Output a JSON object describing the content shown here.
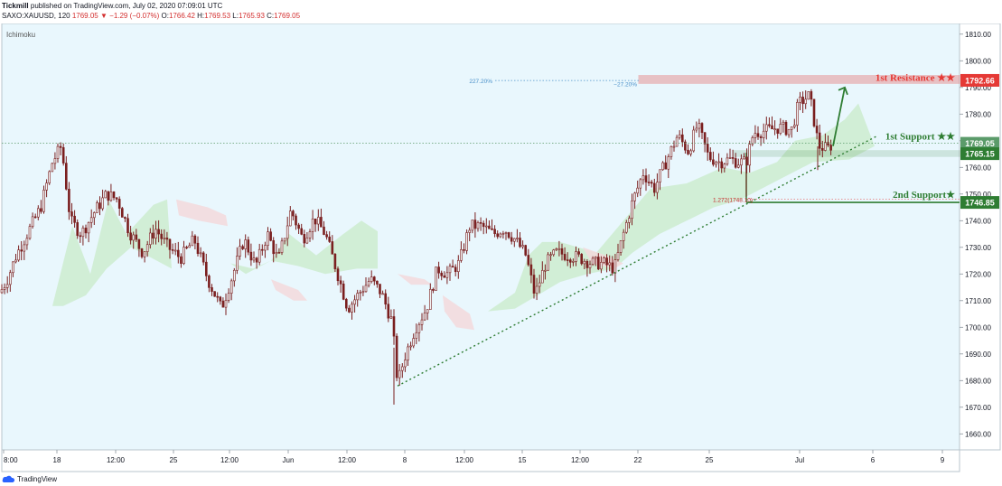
{
  "header": {
    "publisher": "Tickmill",
    "published_text": "published on TradingView.com, July 02, 2020 07:09:01 UTC",
    "symbol": "SAXO:XAUUSD, 120",
    "last": "1769.05",
    "change": "−1.29 (−0.07%)",
    "o_label": "O:",
    "o": "1766.42",
    "h_label": "H:",
    "h": "1769.53",
    "l_label": "L:",
    "l": "1765.93",
    "c_label": "C:",
    "c": "1769.05"
  },
  "indicator_label": "Ichimoku",
  "footer": {
    "brand": "TradingView"
  },
  "colors": {
    "chart_bg": "#e9f7fd",
    "candle": "#7a1f1f",
    "cloud_green": "#cdeccf",
    "cloud_red": "#f3d9dc",
    "trendline": "#2e7d32",
    "resistance": "#e53935",
    "support": "#2e7d32",
    "last_price": "#5b9b6a",
    "fib_blue": "#4a90c9"
  },
  "chart_data": {
    "type": "candlestick",
    "y_ticks": [
      1660,
      1670,
      1680,
      1690,
      1700,
      1710,
      1720,
      1730,
      1740,
      1750,
      1760,
      1770,
      1780,
      1790,
      1800,
      1810
    ],
    "ylim": [
      1654,
      1814
    ],
    "x_ticks": [
      "8:00",
      "18",
      "12:00",
      "25",
      "12:00",
      "Jun",
      "12:00",
      "8",
      "12:00",
      "15",
      "12:00",
      "22",
      "25",
      "Jul",
      "6",
      "9"
    ],
    "close_path": [
      [
        0,
        1713
      ],
      [
        8,
        1718
      ],
      [
        18,
        1727
      ],
      [
        30,
        1735
      ],
      [
        45,
        1745
      ],
      [
        58,
        1762
      ],
      [
        68,
        1768
      ],
      [
        78,
        1740
      ],
      [
        90,
        1735
      ],
      [
        104,
        1743
      ],
      [
        118,
        1750
      ],
      [
        130,
        1748
      ],
      [
        143,
        1736
      ],
      [
        158,
        1728
      ],
      [
        172,
        1737
      ],
      [
        186,
        1730
      ],
      [
        200,
        1726
      ],
      [
        215,
        1733
      ],
      [
        230,
        1718
      ],
      [
        245,
        1707
      ],
      [
        258,
        1720
      ],
      [
        270,
        1733
      ],
      [
        283,
        1723
      ],
      [
        296,
        1735
      ],
      [
        308,
        1725
      ],
      [
        322,
        1744
      ],
      [
        335,
        1733
      ],
      [
        348,
        1741
      ],
      [
        360,
        1735
      ],
      [
        372,
        1722
      ],
      [
        385,
        1707
      ],
      [
        398,
        1713
      ],
      [
        410,
        1718
      ],
      [
        422,
        1713
      ],
      [
        434,
        1702
      ],
      [
        440,
        1679
      ],
      [
        448,
        1689
      ],
      [
        460,
        1700
      ],
      [
        472,
        1707
      ],
      [
        484,
        1722
      ],
      [
        496,
        1720
      ],
      [
        508,
        1724
      ],
      [
        520,
        1738
      ],
      [
        533,
        1738
      ],
      [
        546,
        1735
      ],
      [
        558,
        1737
      ],
      [
        570,
        1733
      ],
      [
        582,
        1727
      ],
      [
        592,
        1712
      ],
      [
        604,
        1724
      ],
      [
        616,
        1728
      ],
      [
        630,
        1727
      ],
      [
        642,
        1726
      ],
      [
        655,
        1724
      ],
      [
        668,
        1724
      ],
      [
        680,
        1722
      ],
      [
        690,
        1735
      ],
      [
        700,
        1747
      ],
      [
        712,
        1758
      ],
      [
        724,
        1752
      ],
      [
        737,
        1762
      ],
      [
        750,
        1772
      ],
      [
        762,
        1766
      ],
      [
        772,
        1776
      ],
      [
        784,
        1764
      ],
      [
        796,
        1762
      ],
      [
        808,
        1763
      ],
      [
        818,
        1762
      ],
      [
        826,
        1762
      ],
      [
        834,
        1773
      ],
      [
        850,
        1774
      ],
      [
        862,
        1775
      ],
      [
        876,
        1774
      ],
      [
        884,
        1784
      ],
      [
        896,
        1787
      ],
      [
        906,
        1768
      ],
      [
        916,
        1767
      ],
      [
        922,
        1769
      ]
    ],
    "trendline": [
      [
        440,
        1678
      ],
      [
        972,
        1772
      ]
    ],
    "cloud_green": [
      [
        [
          58,
          1708
        ],
        [
          80,
          1738
        ],
        [
          100,
          1720
        ],
        [
          120,
          1748
        ],
        [
          140,
          1735
        ],
        [
          170,
          1746
        ],
        [
          185,
          1748
        ],
        [
          190,
          1722
        ],
        [
          168,
          1726
        ],
        [
          145,
          1730
        ],
        [
          118,
          1722
        ],
        [
          95,
          1712
        ],
        [
          70,
          1708
        ]
      ],
      [
        [
          255,
          1724
        ],
        [
          280,
          1722
        ],
        [
          300,
          1725
        ],
        [
          320,
          1735
        ],
        [
          350,
          1727
        ],
        [
          380,
          1735
        ],
        [
          400,
          1740
        ],
        [
          418,
          1736
        ],
        [
          418,
          1722
        ],
        [
          395,
          1722
        ],
        [
          360,
          1720
        ],
        [
          330,
          1723
        ],
        [
          300,
          1725
        ],
        [
          272,
          1720
        ]
      ],
      [
        [
          540,
          1706
        ],
        [
          570,
          1713
        ],
        [
          585,
          1727
        ],
        [
          600,
          1732
        ],
        [
          620,
          1732
        ],
        [
          640,
          1730
        ],
        [
          660,
          1728
        ],
        [
          690,
          1740
        ],
        [
          720,
          1752
        ],
        [
          760,
          1754
        ],
        [
          800,
          1760
        ],
        [
          830,
          1758
        ],
        [
          860,
          1762
        ],
        [
          880,
          1770
        ],
        [
          910,
          1772
        ],
        [
          935,
          1778
        ],
        [
          950,
          1784
        ],
        [
          968,
          1768
        ],
        [
          940,
          1763
        ],
        [
          900,
          1762
        ],
        [
          860,
          1755
        ],
        [
          820,
          1748
        ],
        [
          790,
          1745
        ],
        [
          760,
          1740
        ],
        [
          730,
          1735
        ],
        [
          700,
          1728
        ],
        [
          680,
          1722
        ],
        [
          650,
          1720
        ],
        [
          620,
          1717
        ],
        [
          595,
          1712
        ],
        [
          570,
          1707
        ]
      ]
    ],
    "cloud_red": [
      [
        [
          195,
          1748
        ],
        [
          230,
          1745
        ],
        [
          250,
          1742
        ],
        [
          252,
          1738
        ],
        [
          220,
          1740
        ],
        [
          198,
          1742
        ]
      ],
      [
        [
          300,
          1718
        ],
        [
          330,
          1714
        ],
        [
          340,
          1710
        ],
        [
          325,
          1710
        ],
        [
          305,
          1714
        ]
      ],
      [
        [
          440,
          1720
        ],
        [
          470,
          1718
        ],
        [
          478,
          1716
        ],
        [
          455,
          1716
        ]
      ],
      [
        [
          490,
          1712
        ],
        [
          520,
          1705
        ],
        [
          525,
          1699
        ],
        [
          505,
          1700
        ],
        [
          492,
          1706
        ]
      ],
      [
        [
          645,
          1730
        ],
        [
          670,
          1727
        ],
        [
          690,
          1724
        ],
        [
          680,
          1722
        ],
        [
          655,
          1724
        ]
      ]
    ],
    "annotations": {
      "resistance_label": "1st Resistance ★★",
      "resistance_price": "1792.66",
      "support1_label": "1st Support ★★",
      "support1_price": "1765.15",
      "support2_label": "2nd Support★",
      "support2_price": "1746.85",
      "last_price": "1769.05",
      "fib1_pct": "227.20%",
      "fib1_neg": "−27.20%",
      "fib2": "1.272(1748.10)"
    },
    "resistance_zone": [
      1791.5,
      1794.5
    ],
    "support1_zone": [
      1764.2,
      1766.2
    ],
    "support2_level": 1746.85,
    "fib2_level": 1748.1,
    "arrow_from": [
      922,
      1768
    ],
    "arrow_to": [
      935,
      1790
    ]
  }
}
